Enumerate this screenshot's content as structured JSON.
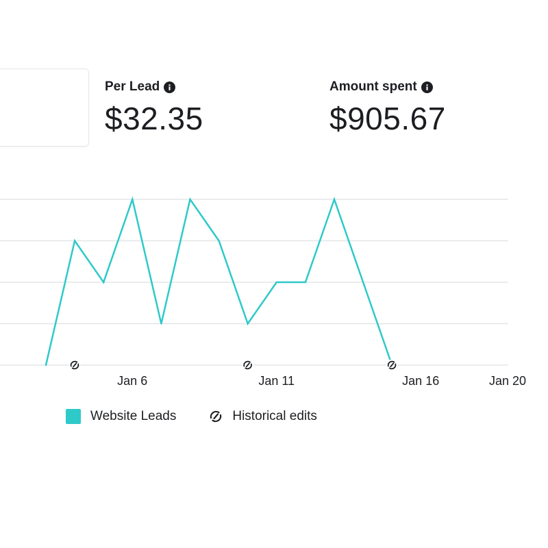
{
  "metrics": {
    "per_lead": {
      "label": "Per Lead",
      "value": "$32.35",
      "icon": "info-icon"
    },
    "amount_spent": {
      "label": "Amount spent",
      "value": "$905.67",
      "icon": "info-icon"
    }
  },
  "colors": {
    "series": "#2ec9c9",
    "grid": "#e3e5e8",
    "text": "#1c1e21"
  },
  "legend": {
    "series_label": "Website Leads",
    "edits_label": "Historical edits",
    "edits_icon": "historical-edits-icon"
  },
  "chart_data": {
    "type": "line",
    "x": [
      "Jan 4",
      "Jan 5",
      "Jan 6",
      "Jan 7",
      "Jan 8",
      "Jan 9",
      "Jan 10",
      "Jan 11",
      "Jan 12",
      "Jan 13",
      "Jan 14",
      "Jan 15",
      "Jan 16"
    ],
    "series": [
      {
        "name": "Website Leads",
        "values": [
          0,
          3,
          2,
          4,
          1,
          4,
          3,
          1,
          2,
          2,
          4,
          2,
          0
        ]
      }
    ],
    "x_ticks": [
      "Jan 6",
      "Jan 11",
      "Jan 16",
      "Jan 20"
    ],
    "ylim": [
      0,
      4
    ],
    "grid": true,
    "legend_position": "bottom-left",
    "historical_edit_markers": [
      "Jan 4",
      "Jan 10",
      "Jan 15"
    ]
  }
}
